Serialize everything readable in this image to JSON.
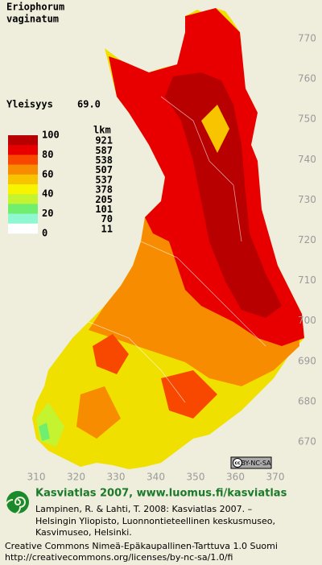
{
  "map": {
    "species": [
      "Eriophorum",
      "vaginatum"
    ],
    "frequency_label": "Yleisyys",
    "frequency_value": "69.0",
    "legend": {
      "count_header": "lkm",
      "labels": [
        100,
        80,
        60,
        40,
        20,
        0
      ],
      "classes": [
        {
          "color": "#b80000",
          "count": 921
        },
        {
          "color": "#e80000",
          "count": 587
        },
        {
          "color": "#f84800",
          "count": 538
        },
        {
          "color": "#f88c00",
          "count": 507
        },
        {
          "color": "#f8c400",
          "count": 537
        },
        {
          "color": "#f8f400",
          "count": 378
        },
        {
          "color": "#c4f430",
          "count": 205
        },
        {
          "color": "#70ee70",
          "count": 101
        },
        {
          "color": "#90f8d0",
          "count": 70
        },
        {
          "color": "#ffffff",
          "count": 11
        }
      ]
    },
    "xticks": [
      310,
      320,
      330,
      340,
      350,
      360,
      370
    ],
    "yticks": [
      770,
      760,
      750,
      740,
      730,
      720,
      710,
      700,
      690,
      680,
      670
    ],
    "license_badge": "BY-NC-SA"
  },
  "footer": {
    "heading": "Kasviatlas 2007, www.luomus.fi/kasviatlas",
    "citation": [
      "Lampinen, R. & Lahti, T. 2008: Kasviatlas 2007. –",
      "Helsingin Yliopisto, Luonnontieteellinen keskusmuseo,",
      "Kasvimuseo, Helsinki."
    ],
    "license": [
      "Creative Commons Nimeä-Epäkaupallinen-Tarttuva 1.0 Suomi",
      "http://creativecommons.org/licenses/by-nc-sa/1.0/fi"
    ]
  }
}
